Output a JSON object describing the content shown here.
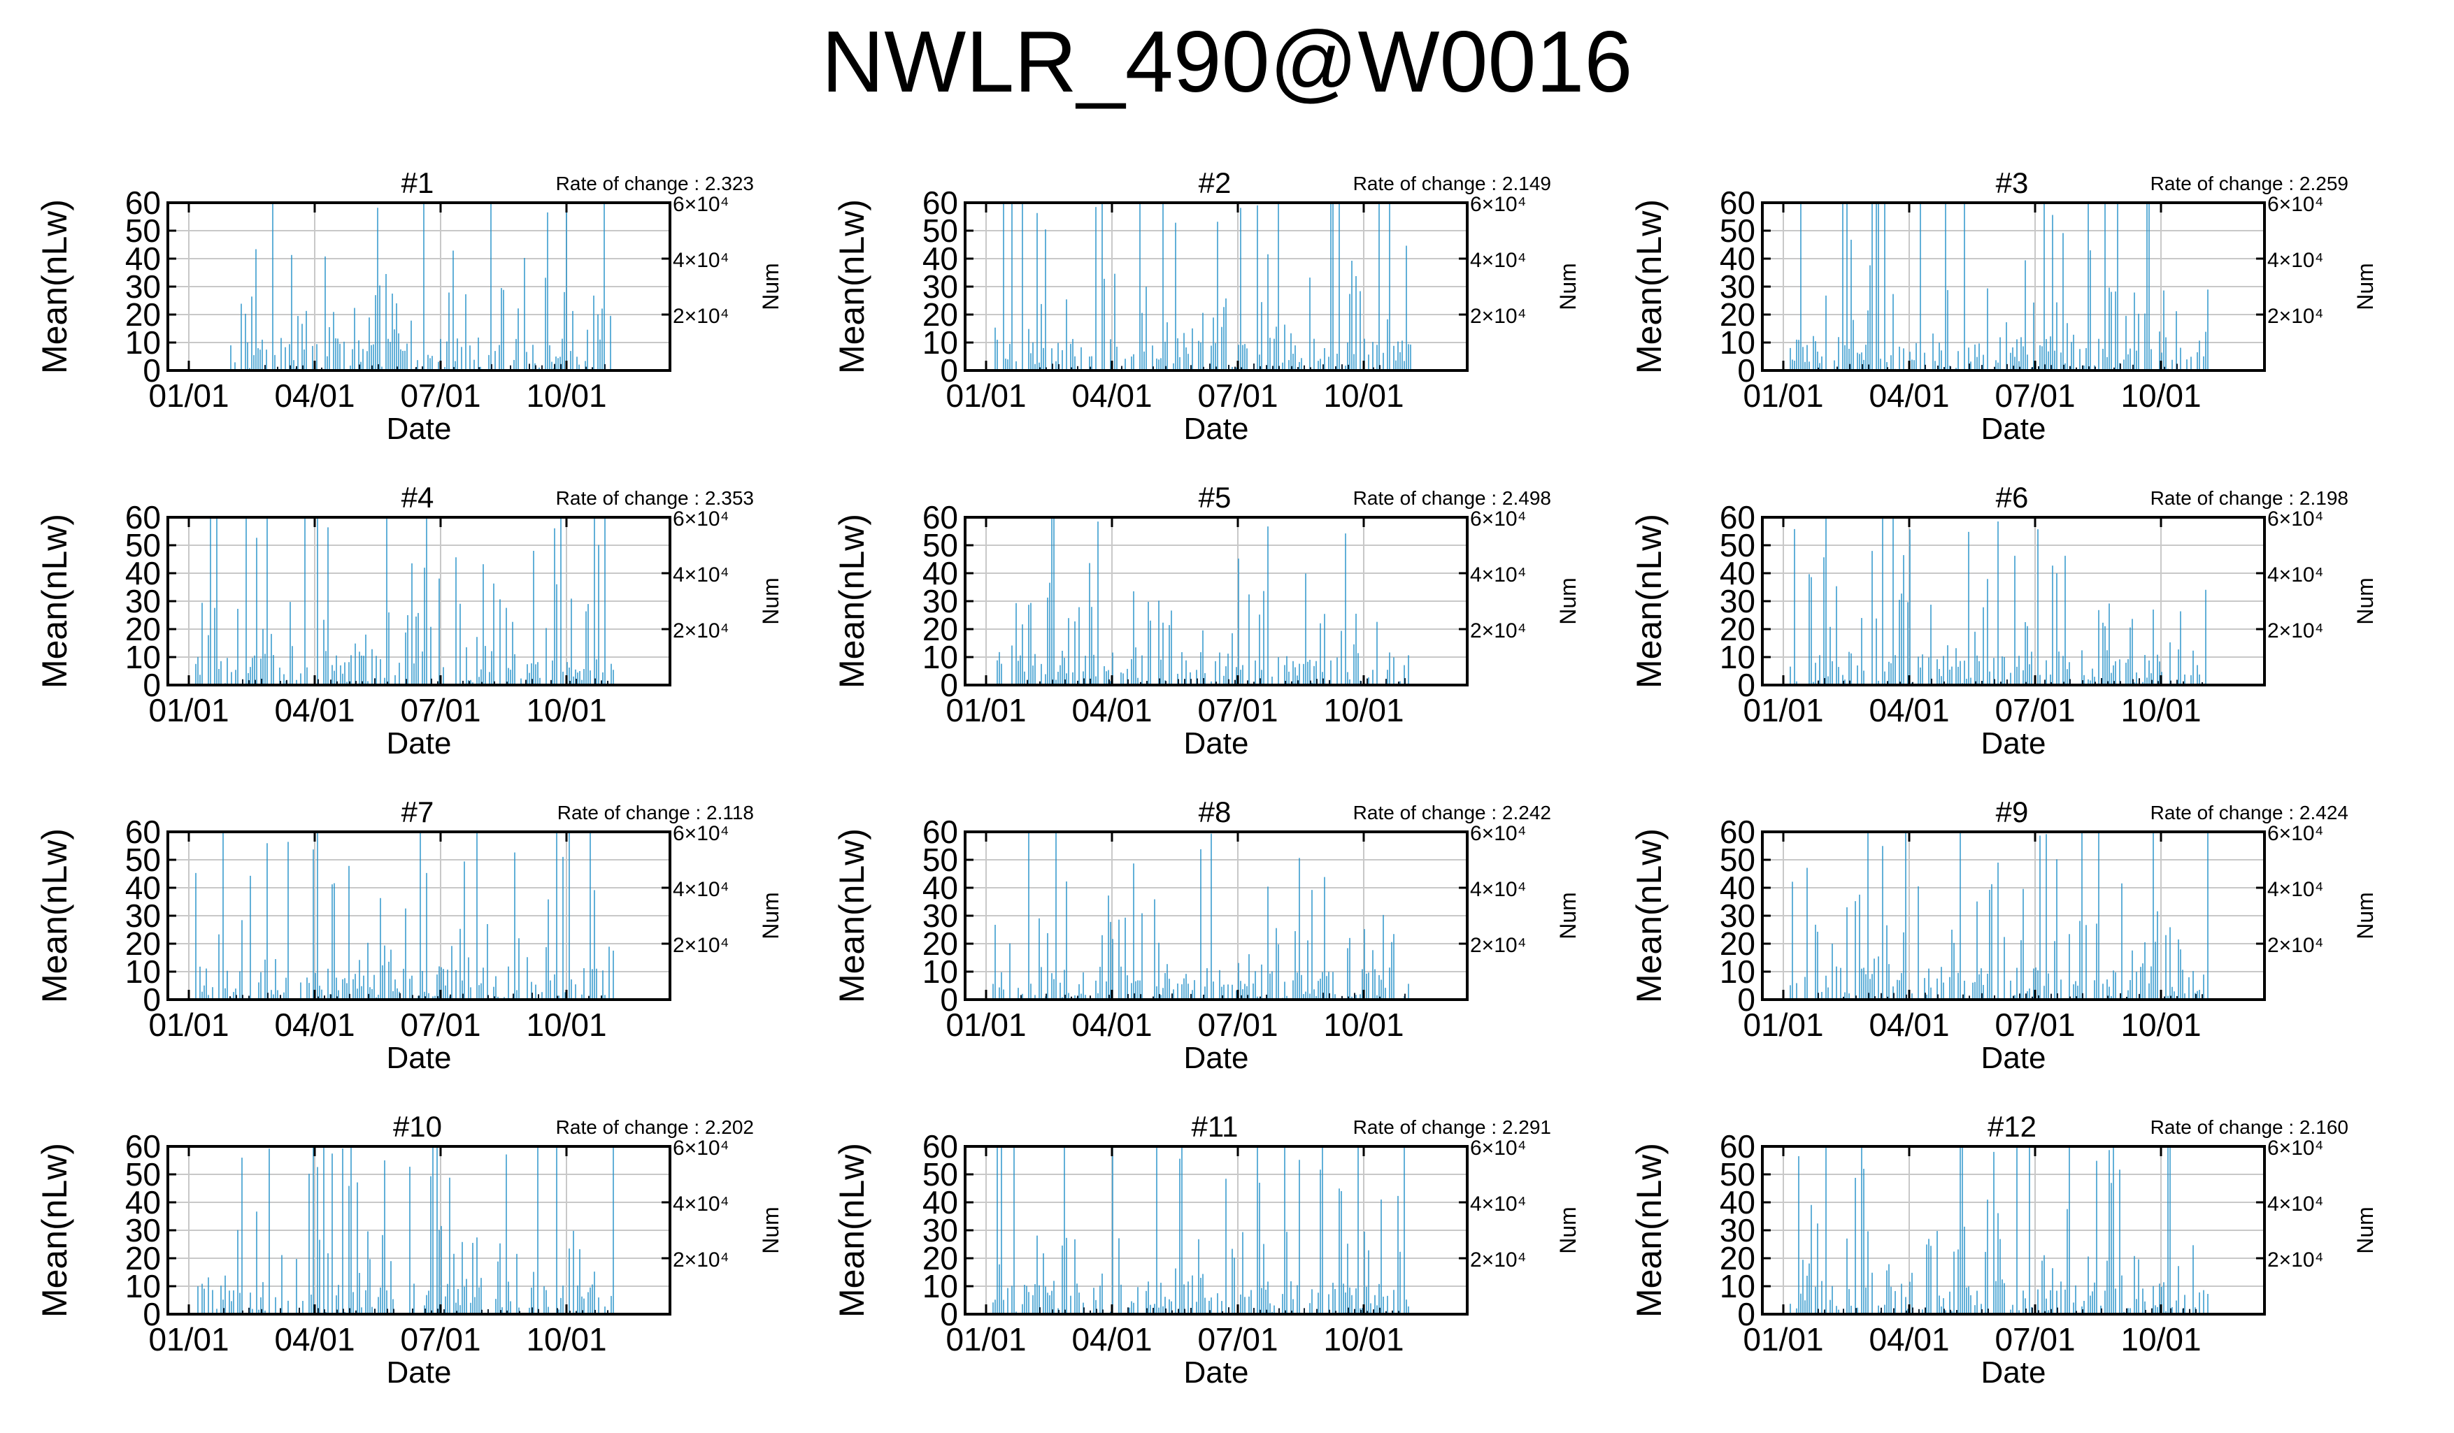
{
  "page_title": "NWLR_490@W0016",
  "colors": {
    "bar": "#1f8fc8",
    "grid": "#c8c8c8",
    "axis": "#000000"
  },
  "chart_data": [
    {
      "type": "bar",
      "title": "#1",
      "annotation": "Rate of change : 2.323",
      "xlabel": "Date",
      "ylabel": "Mean(nLw)",
      "y2label": "Num",
      "ylim": [
        0,
        60
      ],
      "x_tick_labels": [
        "01/01",
        "04/01",
        "07/01",
        "10/01"
      ],
      "y_tick_labels": [
        "0",
        "10",
        "20",
        "30",
        "40",
        "50",
        "60"
      ],
      "y2_tick_labels": [
        "2×10⁴",
        "4×10⁴",
        "6×10⁴"
      ],
      "grid": true
    },
    {
      "type": "bar",
      "title": "#2",
      "annotation": "Rate of change : 2.149",
      "xlabel": "Date",
      "ylabel": "Mean(nLw)",
      "y2label": "Num",
      "ylim": [
        0,
        60
      ],
      "x_tick_labels": [
        "01/01",
        "04/01",
        "07/01",
        "10/01"
      ],
      "y_tick_labels": [
        "0",
        "10",
        "20",
        "30",
        "40",
        "50",
        "60"
      ],
      "y2_tick_labels": [
        "2×10⁴",
        "4×10⁴",
        "6×10⁴"
      ],
      "grid": true
    },
    {
      "type": "bar",
      "title": "#3",
      "annotation": "Rate of change : 2.259",
      "xlabel": "Date",
      "ylabel": "Mean(nLw)",
      "y2label": "Num",
      "ylim": [
        0,
        60
      ],
      "x_tick_labels": [
        "01/01",
        "04/01",
        "07/01",
        "10/01"
      ],
      "y_tick_labels": [
        "0",
        "10",
        "20",
        "30",
        "40",
        "50",
        "60"
      ],
      "y2_tick_labels": [
        "2×10⁴",
        "4×10⁴",
        "6×10⁴"
      ],
      "grid": true
    },
    {
      "type": "bar",
      "title": "#4",
      "annotation": "Rate of change : 2.353",
      "xlabel": "Date",
      "ylabel": "Mean(nLw)",
      "y2label": "Num",
      "ylim": [
        0,
        60
      ],
      "x_tick_labels": [
        "01/01",
        "04/01",
        "07/01",
        "10/01"
      ],
      "y_tick_labels": [
        "0",
        "10",
        "20",
        "30",
        "40",
        "50",
        "60"
      ],
      "y2_tick_labels": [
        "2×10⁴",
        "4×10⁴",
        "6×10⁴"
      ],
      "grid": true
    },
    {
      "type": "bar",
      "title": "#5",
      "annotation": "Rate of change : 2.498",
      "xlabel": "Date",
      "ylabel": "Mean(nLw)",
      "y2label": "Num",
      "ylim": [
        0,
        60
      ],
      "x_tick_labels": [
        "01/01",
        "04/01",
        "07/01",
        "10/01"
      ],
      "y_tick_labels": [
        "0",
        "10",
        "20",
        "30",
        "40",
        "50",
        "60"
      ],
      "y2_tick_labels": [
        "2×10⁴",
        "4×10⁴",
        "6×10⁴"
      ],
      "grid": true
    },
    {
      "type": "bar",
      "title": "#6",
      "annotation": "Rate of change : 2.198",
      "xlabel": "Date",
      "ylabel": "Mean(nLw)",
      "y2label": "Num",
      "ylim": [
        0,
        60
      ],
      "x_tick_labels": [
        "01/01",
        "04/01",
        "07/01",
        "10/01"
      ],
      "y_tick_labels": [
        "0",
        "10",
        "20",
        "30",
        "40",
        "50",
        "60"
      ],
      "y2_tick_labels": [
        "2×10⁴",
        "4×10⁴",
        "6×10⁴"
      ],
      "grid": true
    },
    {
      "type": "bar",
      "title": "#7",
      "annotation": "Rate of change : 2.118",
      "xlabel": "Date",
      "ylabel": "Mean(nLw)",
      "y2label": "Num",
      "ylim": [
        0,
        60
      ],
      "x_tick_labels": [
        "01/01",
        "04/01",
        "07/01",
        "10/01"
      ],
      "y_tick_labels": [
        "0",
        "10",
        "20",
        "30",
        "40",
        "50",
        "60"
      ],
      "y2_tick_labels": [
        "2×10⁴",
        "4×10⁴",
        "6×10⁴"
      ],
      "grid": true
    },
    {
      "type": "bar",
      "title": "#8",
      "annotation": "Rate of change : 2.242",
      "xlabel": "Date",
      "ylabel": "Mean(nLw)",
      "y2label": "Num",
      "ylim": [
        0,
        60
      ],
      "x_tick_labels": [
        "01/01",
        "04/01",
        "07/01",
        "10/01"
      ],
      "y_tick_labels": [
        "0",
        "10",
        "20",
        "30",
        "40",
        "50",
        "60"
      ],
      "y2_tick_labels": [
        "2×10⁴",
        "4×10⁴",
        "6×10⁴"
      ],
      "grid": true
    },
    {
      "type": "bar",
      "title": "#9",
      "annotation": "Rate of change : 2.424",
      "xlabel": "Date",
      "ylabel": "Mean(nLw)",
      "y2label": "Num",
      "ylim": [
        0,
        60
      ],
      "x_tick_labels": [
        "01/01",
        "04/01",
        "07/01",
        "10/01"
      ],
      "y_tick_labels": [
        "0",
        "10",
        "20",
        "30",
        "40",
        "50",
        "60"
      ],
      "y2_tick_labels": [
        "2×10⁴",
        "4×10⁴",
        "6×10⁴"
      ],
      "grid": true
    },
    {
      "type": "bar",
      "title": "#10",
      "annotation": "Rate of change : 2.202",
      "xlabel": "Date",
      "ylabel": "Mean(nLw)",
      "y2label": "Num",
      "ylim": [
        0,
        60
      ],
      "x_tick_labels": [
        "01/01",
        "04/01",
        "07/01",
        "10/01"
      ],
      "y_tick_labels": [
        "0",
        "10",
        "20",
        "30",
        "40",
        "50",
        "60"
      ],
      "y2_tick_labels": [
        "2×10⁴",
        "4×10⁴",
        "6×10⁴"
      ],
      "grid": true
    },
    {
      "type": "bar",
      "title": "#11",
      "annotation": "Rate of change : 2.291",
      "xlabel": "Date",
      "ylabel": "Mean(nLw)",
      "y2label": "Num",
      "ylim": [
        0,
        60
      ],
      "x_tick_labels": [
        "01/01",
        "04/01",
        "07/01",
        "10/01"
      ],
      "y_tick_labels": [
        "0",
        "10",
        "20",
        "30",
        "40",
        "50",
        "60"
      ],
      "y2_tick_labels": [
        "2×10⁴",
        "4×10⁴",
        "6×10⁴"
      ],
      "grid": true
    },
    {
      "type": "bar",
      "title": "#12",
      "annotation": "Rate of change : 2.160",
      "xlabel": "Date",
      "ylabel": "Mean(nLw)",
      "y2label": "Num",
      "ylim": [
        0,
        60
      ],
      "x_tick_labels": [
        "01/01",
        "04/01",
        "07/01",
        "10/01"
      ],
      "y_tick_labels": [
        "0",
        "10",
        "20",
        "30",
        "40",
        "50",
        "60"
      ],
      "y2_tick_labels": [
        "2×10⁴",
        "4×10⁴",
        "6×10⁴"
      ],
      "grid": true
    }
  ]
}
